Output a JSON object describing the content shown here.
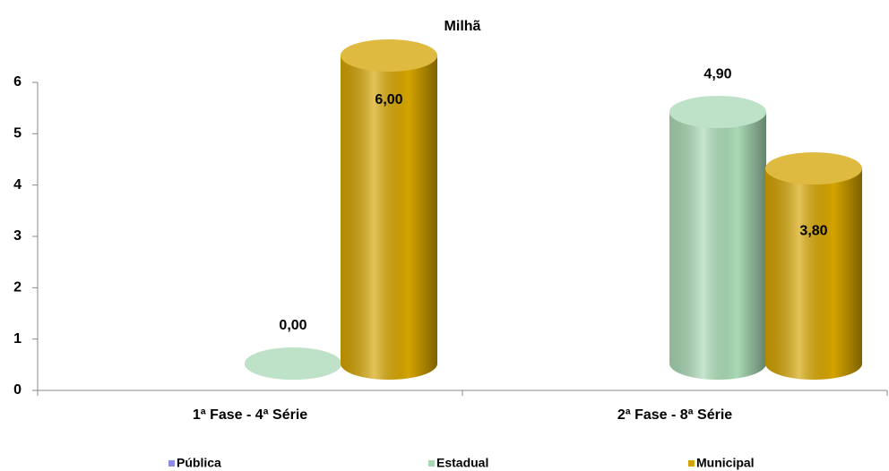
{
  "chart_data": {
    "type": "bar3d",
    "title": "Milhã",
    "categories": [
      "1ª Fase - 4ª Série",
      "2ª Fase - 8ª Série"
    ],
    "series": [
      {
        "name": "Pública",
        "color": "#8c8ce6",
        "values": [
          null,
          null
        ]
      },
      {
        "name": "Estadual",
        "color": "#a9d9b4",
        "values": [
          0,
          4.9
        ],
        "value_labels": [
          "0,00",
          "4,90"
        ]
      },
      {
        "name": "Municipal",
        "color": "#d4a300",
        "values": [
          6,
          3.8
        ],
        "value_labels": [
          "6,00",
          "3,80"
        ]
      }
    ],
    "ylim": [
      0,
      6
    ],
    "yticks": [
      0,
      1,
      2,
      3,
      4,
      5,
      6
    ],
    "legend": "bottom"
  }
}
